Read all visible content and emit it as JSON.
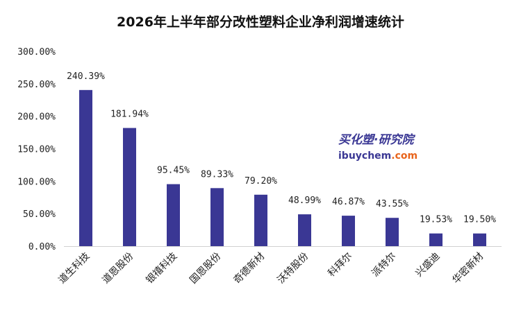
{
  "chart_data": {
    "type": "bar",
    "title": "2026年上半年部分改性塑料企业净利润增速统计",
    "categories": [
      "道生科技",
      "道恩股份",
      "银禧科技",
      "国恩股份",
      "奇德新材",
      "沃特股份",
      "科拜尔",
      "派特尔",
      "兴盛迪",
      "华密新材"
    ],
    "values": [
      240.39,
      181.94,
      95.45,
      89.33,
      79.2,
      48.99,
      46.87,
      43.55,
      19.53,
      19.5
    ],
    "data_labels": [
      "240.39%",
      "181.94%",
      "95.45%",
      "89.33%",
      "79.20%",
      "48.99%",
      "46.87%",
      "43.55%",
      "19.53%",
      "19.50%"
    ],
    "ylim": [
      0,
      300
    ],
    "yticks": [
      0,
      50,
      100,
      150,
      200,
      250,
      300
    ],
    "ytick_labels": [
      "0.00%",
      "50.00%",
      "100.00%",
      "150.00%",
      "200.00%",
      "250.00%",
      "300.00%"
    ],
    "grid": false,
    "legend": "none",
    "bar_color": "#3a3794"
  },
  "watermark": {
    "cn_text": "买化塑·研究院",
    "en_main": "ibuychem",
    "en_suffix": ".com",
    "color_cn": "#3a3794",
    "color_en": "#3a3794",
    "color_suffix": "#e8641c"
  }
}
